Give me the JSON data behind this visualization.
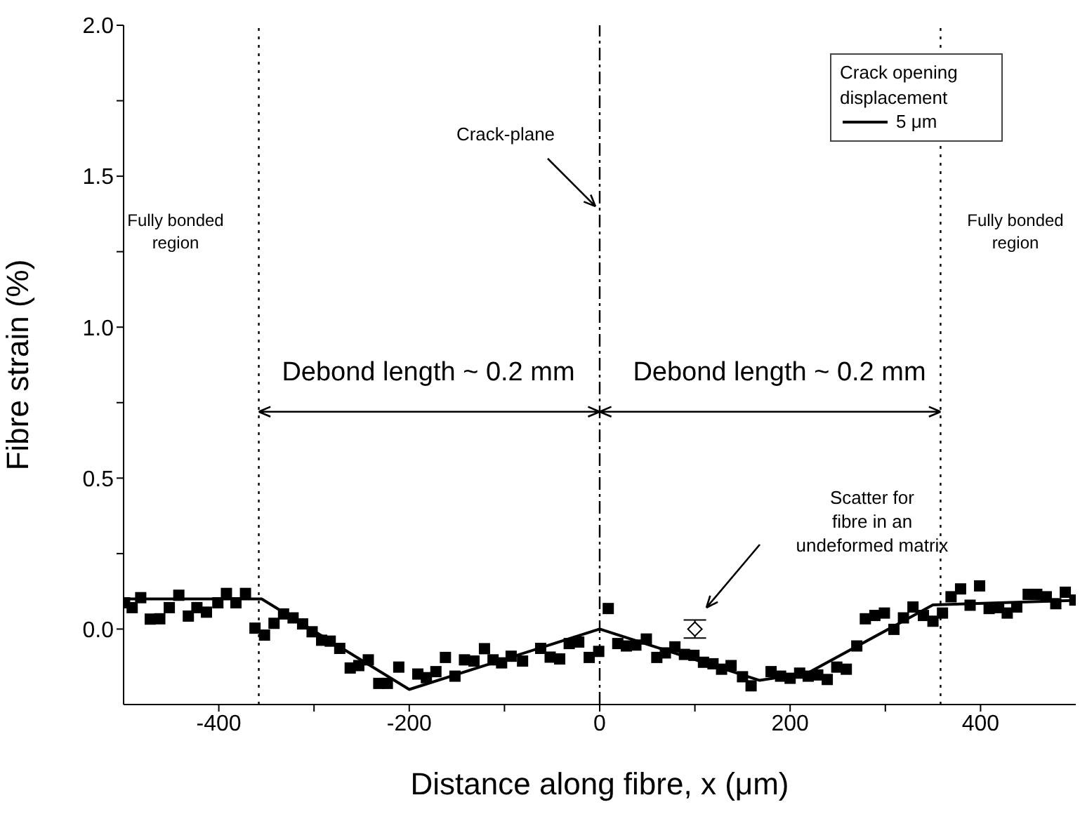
{
  "chart_data": {
    "type": "scatter",
    "xlabel": "Distance along fibre, x (μm)",
    "ylabel": "Fibre strain (%)",
    "xlim": [
      -500,
      500
    ],
    "ylim": [
      -0.25,
      2.0
    ],
    "xticks": [
      -400,
      {
        "value": -300,
        "label": null
      },
      -200,
      {
        "value": -100,
        "label": null
      },
      0,
      {
        "value": 100,
        "label": null
      },
      200,
      {
        "value": 300,
        "label": null
      },
      400
    ],
    "yticks": [
      {
        "value": 0,
        "label": "0.0"
      },
      {
        "value": 0.25,
        "label": null
      },
      {
        "value": 0.5,
        "label": "0.5"
      },
      {
        "value": 0.75,
        "label": null
      },
      {
        "value": 1.0,
        "label": "1.0"
      },
      {
        "value": 1.25,
        "label": null
      },
      {
        "value": 1.5,
        "label": "1.5"
      },
      {
        "value": 1.75,
        "label": null
      },
      {
        "value": 2.0,
        "label": "2.0"
      }
    ],
    "legend": "top right",
    "legend_title": "Crack opening displacement",
    "series": [
      {
        "type": "scatter",
        "marker": "square",
        "color": "#000000",
        "x": [
          -499,
          -491,
          -482,
          -472,
          -462,
          -452,
          -442,
          -432,
          -423,
          -413,
          -401,
          -392,
          -382,
          -372,
          -362,
          -352,
          -342,
          -332,
          -322,
          -312,
          -302,
          -292,
          -283,
          -273,
          -262,
          -253,
          -243,
          -232,
          -223,
          -211,
          -191,
          -182,
          -172,
          -162,
          -152,
          -142,
          -132,
          -121,
          -112,
          -103,
          -93,
          -81,
          -62,
          -52,
          -42,
          -32,
          -22,
          -11,
          -1,
          9,
          19,
          28,
          38,
          49,
          60,
          69,
          79,
          89,
          99,
          109,
          119,
          128,
          138,
          150,
          159,
          180,
          190,
          200,
          210,
          219,
          229,
          239,
          249,
          259,
          270,
          279,
          289,
          299,
          309,
          319,
          329,
          340,
          350,
          360,
          369,
          379,
          389,
          399,
          409,
          419,
          428,
          438,
          450,
          459,
          469,
          479,
          489,
          499
        ],
        "values": [
          0.087,
          0.071,
          0.104,
          0.033,
          0.034,
          0.071,
          0.112,
          0.043,
          0.071,
          0.056,
          0.087,
          0.118,
          0.087,
          0.118,
          0.003,
          -0.02,
          0.019,
          0.05,
          0.037,
          0.017,
          -0.009,
          -0.037,
          -0.04,
          -0.064,
          -0.129,
          -0.121,
          -0.102,
          -0.18,
          -0.18,
          -0.126,
          -0.149,
          -0.161,
          -0.141,
          -0.094,
          -0.156,
          -0.102,
          -0.106,
          -0.065,
          -0.102,
          -0.112,
          -0.09,
          -0.106,
          -0.064,
          -0.093,
          -0.099,
          -0.048,
          -0.043,
          -0.094,
          -0.074,
          0.068,
          -0.048,
          -0.056,
          -0.053,
          -0.033,
          -0.094,
          -0.079,
          -0.059,
          -0.084,
          -0.087,
          -0.11,
          -0.115,
          -0.133,
          -0.121,
          -0.158,
          -0.188,
          -0.141,
          -0.156,
          -0.163,
          -0.146,
          -0.156,
          -0.152,
          -0.167,
          -0.126,
          -0.133,
          -0.056,
          0.034,
          0.045,
          0.053,
          -0.001,
          0.037,
          0.073,
          0.045,
          0.026,
          0.053,
          0.107,
          0.133,
          0.079,
          0.143,
          0.068,
          0.071,
          0.053,
          0.073,
          0.115,
          0.115,
          0.107,
          0.084,
          0.122,
          0.096
        ]
      },
      {
        "type": "line",
        "name": "5 μm",
        "color": "#000000",
        "marker": "none",
        "x": [
          -500,
          -355,
          -200,
          0,
          168,
          219,
          350,
          500
        ],
        "values": [
          0.1,
          0.1,
          -0.2,
          0,
          -0.17,
          -0.145,
          0.08,
          0.095
        ]
      },
      {
        "type": "scatter",
        "marker": "diamond",
        "color": "#000000",
        "x": [
          100
        ],
        "values": [
          0
        ],
        "errors": [
          0.03
        ]
      }
    ],
    "ref_lines": [
      {
        "axis": "x",
        "value": -358,
        "line_style": "dotted"
      },
      {
        "axis": "x",
        "value": 0,
        "line_style": "dashed"
      },
      {
        "axis": "x",
        "value": 358,
        "line_style": "dotted"
      }
    ],
    "annotations": [
      {
        "text": "Crack-plane",
        "x": 0,
        "y": 1.4
      },
      {
        "text": "Debond length ~ 0.2 mm",
        "x": -358,
        "y": 0.72
      },
      {
        "text": "Debond length ~ 0.2 mm",
        "x": 358,
        "y": 0.72
      },
      "Scatter for fibre in an undeformed matrix",
      "Fully bonded region",
      "Fully bonded region"
    ]
  }
}
